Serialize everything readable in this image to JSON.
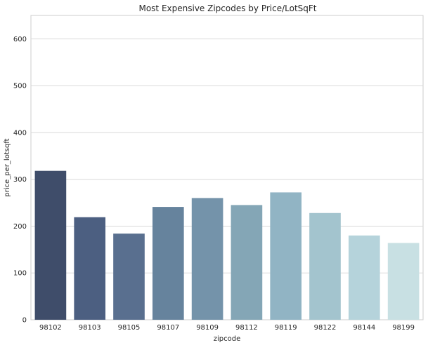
{
  "chart_data": {
    "type": "bar",
    "title": "Most Expensive Zipcodes by Price/LotSqFt",
    "xlabel": "zipcode",
    "ylabel": "price_per_lotsqft",
    "categories": [
      "98102",
      "98103",
      "98105",
      "98107",
      "98109",
      "98112",
      "98119",
      "98122",
      "98144",
      "98199"
    ],
    "values": [
      318,
      219,
      184,
      241,
      260,
      245,
      272,
      228,
      180,
      164
    ],
    "colors": [
      "#3f4d6a",
      "#4c5f81",
      "#596f8f",
      "#66839d",
      "#7493aa",
      "#84a6b6",
      "#91b4c4",
      "#a3c4ce",
      "#b5d3db",
      "#c8e0e3"
    ],
    "ylim": [
      0,
      650
    ],
    "yticks": [
      0,
      100,
      200,
      300,
      400,
      500,
      600
    ],
    "grid": true,
    "legend": "none"
  }
}
